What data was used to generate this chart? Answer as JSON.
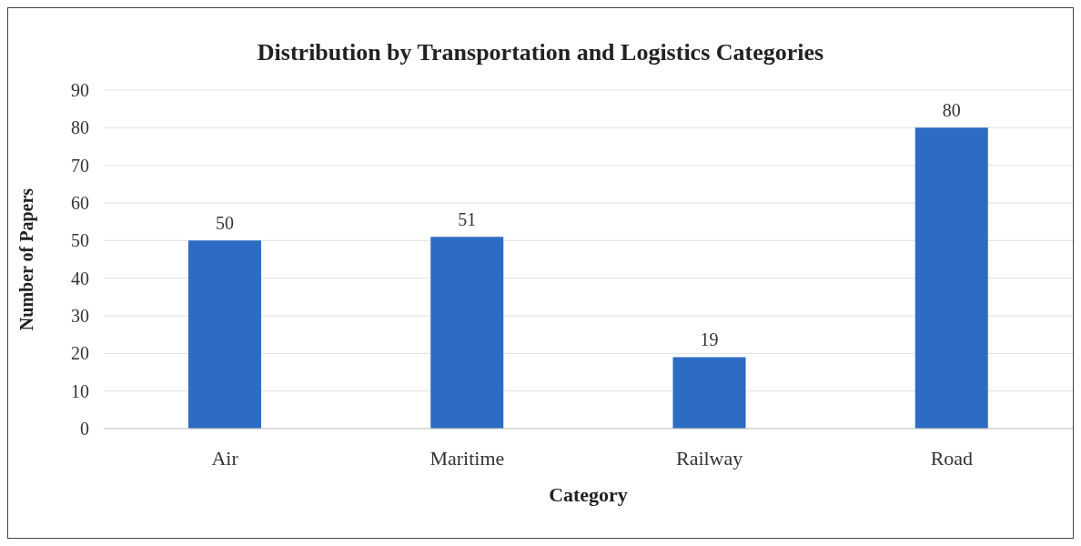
{
  "chart_data": {
    "type": "bar",
    "title": "Distribution by Transportation and Logistics Categories",
    "xlabel": "Category",
    "ylabel": "Number of Papers",
    "categories": [
      "Air",
      "Maritime",
      "Railway",
      "Road"
    ],
    "values": [
      50,
      51,
      19,
      80
    ],
    "color": "#2e6bc4",
    "ylim": [
      0,
      90
    ],
    "yticks": [
      0,
      10,
      20,
      30,
      40,
      50,
      60,
      70,
      80,
      90
    ],
    "grid": "y",
    "data_labels": true
  }
}
